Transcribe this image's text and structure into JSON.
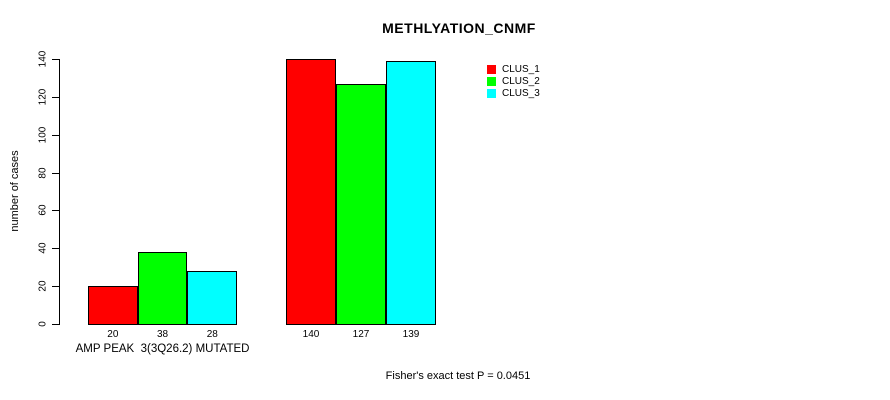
{
  "chart_data": {
    "type": "bar",
    "title": "METHLYATION_CNMF",
    "ylabel": "number of cases",
    "xlabel": "",
    "ylim": [
      0,
      140
    ],
    "yticks": [
      0,
      20,
      40,
      60,
      80,
      100,
      120,
      140
    ],
    "grid": false,
    "legend_position": "top-right",
    "series": [
      {
        "name": "CLUS_1",
        "color": "#ff0000"
      },
      {
        "name": "CLUS_2",
        "color": "#00ff00"
      },
      {
        "name": "CLUS_3",
        "color": "#00ffff"
      }
    ],
    "groups": [
      {
        "label": "AMP PEAK  3(3Q26.2) MUTATED",
        "values": [
          20,
          38,
          28
        ]
      },
      {
        "label": "",
        "values": [
          140,
          127,
          139
        ]
      }
    ],
    "bar_value_labels": [
      [
        "20",
        "38",
        "28"
      ],
      [
        "140",
        "127",
        "139"
      ]
    ],
    "annotation": "Fisher's exact test P = 0.0451"
  }
}
